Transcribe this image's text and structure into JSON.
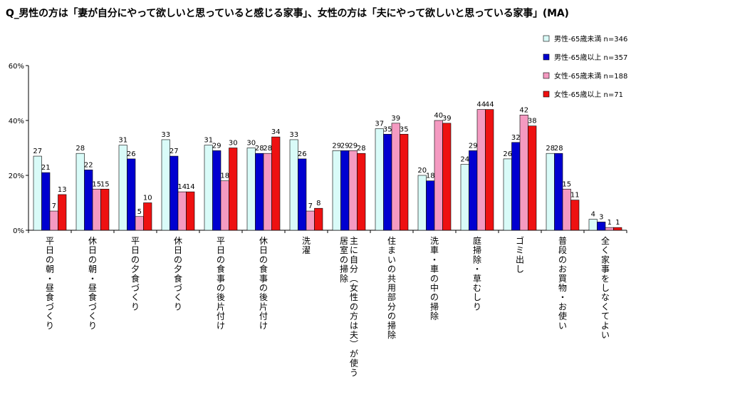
{
  "chart_data": {
    "type": "bar",
    "title": "Q_男性の方は「妻が自分にやって欲しいと思っていると感じる家事」、女性の方は「夫にやって欲しいと思っている家事」(MA)",
    "xlabel": "",
    "ylabel": "",
    "ylim": [
      0,
      60
    ],
    "yticks": [
      "0%",
      "20%",
      "40%",
      "60%"
    ],
    "grid": false,
    "legend_position": "top-right",
    "categories": [
      "平日の朝・昼食づくり",
      "休日の朝・昼食づくり",
      "平日の夕食づくり",
      "休日の夕食づくり",
      "平日の食事の後片付け",
      "休日の食事の後片付け",
      "洗濯",
      "主に自分(女性の方は夫)が使う居室の掃除",
      "住まいの共用部分の掃除",
      "洗車・車の中の掃除",
      "庭掃除・草むしり",
      "ゴミ出し",
      "普段のお買物・お使い",
      "全く家事をしなくてよい"
    ],
    "category_lines": [
      [
        "平日の朝・昼食づくり"
      ],
      [
        "休日の朝・昼食づくり"
      ],
      [
        "平日の夕食づくり"
      ],
      [
        "休日の夕食づくり"
      ],
      [
        "平日の食事の後片付け"
      ],
      [
        "休日の食事の後片付け"
      ],
      [
        "洗濯"
      ],
      [
        "主に自分(女性の方は夫)が使う",
        "居室の掃除"
      ],
      [
        "住まいの共用部分の掃除"
      ],
      [
        "洗車・車の中の掃除"
      ],
      [
        "庭掃除・草むしり"
      ],
      [
        "ゴミ出し"
      ],
      [
        "普段のお買物・お使い"
      ],
      [
        "全く家事をしなくてよい"
      ]
    ],
    "series": [
      {
        "name": "男性-65歳未満 n=346",
        "color": "#d9fbf8",
        "values": [
          27,
          28,
          31,
          33,
          31,
          30,
          33,
          29,
          37,
          20,
          24,
          26,
          28,
          4
        ]
      },
      {
        "name": "男性-65歳以上 n=357",
        "color": "#0000d0",
        "values": [
          21,
          22,
          26,
          27,
          29,
          28,
          26,
          29,
          35,
          18,
          29,
          32,
          28,
          3
        ]
      },
      {
        "name": "女性-65歳未満 n=188",
        "color": "#f49ac1",
        "values": [
          7,
          15,
          5,
          14,
          18,
          28,
          7,
          29,
          39,
          40,
          44,
          42,
          15,
          1
        ]
      },
      {
        "name": "女性-65歳以上 n=71",
        "color": "#ee1111",
        "values": [
          13,
          15,
          10,
          14,
          30,
          34,
          8,
          28,
          35,
          39,
          44,
          38,
          11,
          1
        ]
      }
    ]
  }
}
